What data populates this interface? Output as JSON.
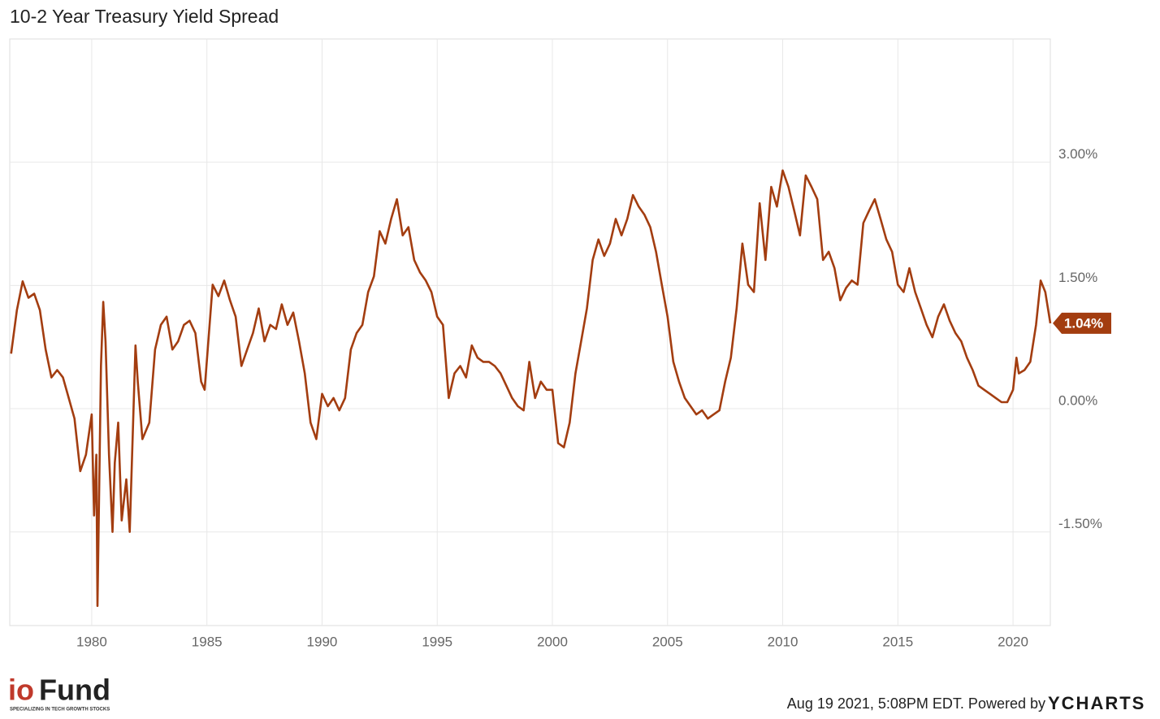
{
  "chart_data": {
    "type": "line",
    "title": "10-2 Year Treasury Yield Spread",
    "x": [
      1976.5,
      1976.75,
      1977.0,
      1977.25,
      1977.5,
      1977.75,
      1978.0,
      1978.25,
      1978.5,
      1978.75,
      1979.0,
      1979.25,
      1979.5,
      1979.75,
      1980.0,
      1980.1,
      1980.2,
      1980.25,
      1980.4,
      1980.5,
      1980.6,
      1980.75,
      1980.9,
      1981.0,
      1981.15,
      1981.3,
      1981.5,
      1981.65,
      1981.9,
      1982.0,
      1982.2,
      1982.5,
      1982.75,
      1983.0,
      1983.25,
      1983.5,
      1983.75,
      1984.0,
      1984.25,
      1984.5,
      1984.75,
      1984.9,
      1985.25,
      1985.5,
      1985.75,
      1986.0,
      1986.25,
      1986.5,
      1986.75,
      1987.0,
      1987.25,
      1987.5,
      1987.75,
      1988.0,
      1988.25,
      1988.5,
      1988.75,
      1989.0,
      1989.25,
      1989.5,
      1989.75,
      1990.0,
      1990.25,
      1990.5,
      1990.75,
      1991.0,
      1991.25,
      1991.5,
      1991.75,
      1992.0,
      1992.25,
      1992.5,
      1992.75,
      1993.0,
      1993.25,
      1993.5,
      1993.75,
      1994.0,
      1994.25,
      1994.5,
      1994.75,
      1995.0,
      1995.25,
      1995.5,
      1995.75,
      1996.0,
      1996.25,
      1996.5,
      1996.75,
      1997.0,
      1997.25,
      1997.5,
      1997.75,
      1998.0,
      1998.25,
      1998.5,
      1998.75,
      1999.0,
      1999.25,
      1999.5,
      1999.75,
      2000.0,
      2000.25,
      2000.5,
      2000.75,
      2001.0,
      2001.25,
      2001.5,
      2001.75,
      2002.0,
      2002.25,
      2002.5,
      2002.75,
      2003.0,
      2003.25,
      2003.5,
      2003.75,
      2004.0,
      2004.25,
      2004.5,
      2004.75,
      2005.0,
      2005.25,
      2005.5,
      2005.75,
      2006.0,
      2006.25,
      2006.5,
      2006.75,
      2007.0,
      2007.25,
      2007.5,
      2007.75,
      2008.0,
      2008.25,
      2008.5,
      2008.75,
      2009.0,
      2009.25,
      2009.5,
      2009.75,
      2010.0,
      2010.25,
      2010.5,
      2010.75,
      2011.0,
      2011.25,
      2011.5,
      2011.75,
      2012.0,
      2012.25,
      2012.5,
      2012.75,
      2013.0,
      2013.25,
      2013.5,
      2013.75,
      2014.0,
      2014.25,
      2014.5,
      2014.75,
      2015.0,
      2015.25,
      2015.5,
      2015.75,
      2016.0,
      2016.25,
      2016.5,
      2016.75,
      2017.0,
      2017.25,
      2017.5,
      2017.75,
      2018.0,
      2018.25,
      2018.5,
      2018.75,
      2019.0,
      2019.25,
      2019.5,
      2019.75,
      2020.0,
      2020.15,
      2020.25,
      2020.5,
      2020.75,
      2021.0,
      2021.2,
      2021.4,
      2021.62
    ],
    "values": [
      0.67,
      1.2,
      1.55,
      1.35,
      1.4,
      1.2,
      0.72,
      0.38,
      0.47,
      0.38,
      0.13,
      -0.12,
      -0.76,
      -0.56,
      -0.07,
      -1.3,
      -0.56,
      -2.4,
      0.52,
      1.3,
      0.82,
      -0.56,
      -1.5,
      -0.66,
      -0.17,
      -1.36,
      -0.86,
      -1.5,
      0.77,
      0.33,
      -0.37,
      -0.17,
      0.72,
      1.02,
      1.12,
      0.72,
      0.82,
      1.02,
      1.07,
      0.92,
      0.33,
      0.23,
      1.51,
      1.37,
      1.56,
      1.32,
      1.12,
      0.52,
      0.72,
      0.92,
      1.22,
      0.82,
      1.02,
      0.97,
      1.27,
      1.02,
      1.17,
      0.82,
      0.43,
      -0.17,
      -0.37,
      0.18,
      0.03,
      0.13,
      -0.02,
      0.13,
      0.72,
      0.92,
      1.02,
      1.42,
      1.61,
      2.16,
      2.01,
      2.31,
      2.55,
      2.11,
      2.21,
      1.81,
      1.66,
      1.56,
      1.42,
      1.12,
      1.02,
      0.13,
      0.43,
      0.52,
      0.38,
      0.77,
      0.62,
      0.57,
      0.57,
      0.52,
      0.43,
      0.28,
      0.13,
      0.03,
      -0.02,
      0.57,
      0.13,
      0.33,
      0.23,
      0.23,
      -0.42,
      -0.47,
      -0.17,
      0.43,
      0.82,
      1.22,
      1.81,
      2.06,
      1.86,
      2.01,
      2.31,
      2.11,
      2.31,
      2.6,
      2.46,
      2.36,
      2.21,
      1.91,
      1.51,
      1.12,
      0.57,
      0.33,
      0.13,
      0.03,
      -0.07,
      -0.02,
      -0.12,
      -0.07,
      -0.02,
      0.33,
      0.62,
      1.22,
      2.01,
      1.51,
      1.42,
      2.5,
      1.81,
      2.7,
      2.46,
      2.9,
      2.7,
      2.41,
      2.11,
      2.84,
      2.7,
      2.55,
      1.81,
      1.91,
      1.71,
      1.32,
      1.47,
      1.56,
      1.51,
      2.26,
      2.41,
      2.55,
      2.31,
      2.06,
      1.91,
      1.51,
      1.42,
      1.71,
      1.42,
      1.22,
      1.02,
      0.87,
      1.12,
      1.27,
      1.07,
      0.92,
      0.82,
      0.62,
      0.47,
      0.28,
      0.23,
      0.18,
      0.13,
      0.08,
      0.08,
      0.23,
      0.62,
      0.43,
      0.47,
      0.57,
      1.02,
      1.56,
      1.42,
      1.04
    ],
    "color": "#a33d10",
    "xlim": [
      1976.44,
      2021.62
    ],
    "xticks": [
      1980,
      1985,
      1990,
      1995,
      2000,
      2005,
      2010,
      2015,
      2020
    ],
    "ylim": [
      -2.64,
      4.5
    ],
    "yticks": [
      {
        "value": -1.5,
        "label": "-1.50%"
      },
      {
        "value": 0,
        "label": "0.00%"
      },
      {
        "value": 1.5,
        "label": "1.50%"
      },
      {
        "value": 3,
        "label": "3.00%"
      }
    ],
    "grid": true,
    "annotation": {
      "value": 1.04,
      "label": "1.04%"
    }
  },
  "footer": {
    "brand_prefix": "io",
    "brand_name": "Fund",
    "tagline": "SPECIALIZING IN TECH GROWTH STOCKS",
    "credit": "Aug 19 2021, 5:08PM EDT. Powered by",
    "source": "YCHARTS"
  }
}
